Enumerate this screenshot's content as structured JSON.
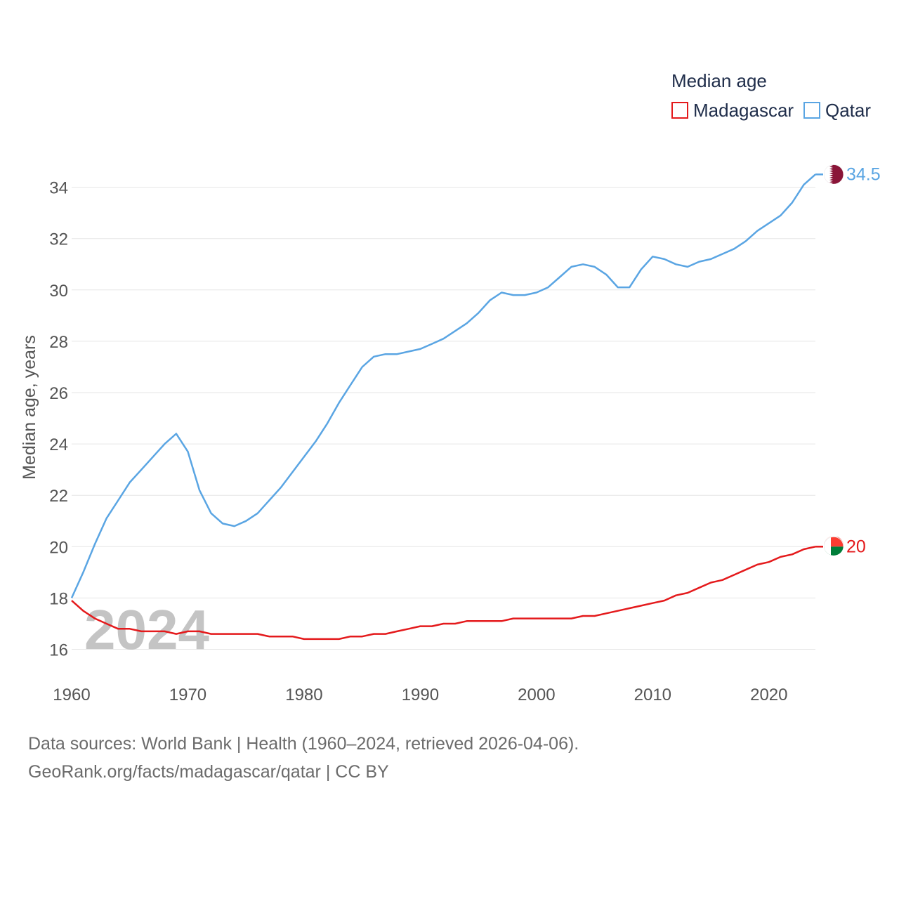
{
  "chart_data": {
    "type": "line",
    "title": "Median age",
    "ylabel": "Median age, years",
    "xlabel": "",
    "xlim": [
      1960,
      2024
    ],
    "ylim": [
      15,
      35.5
    ],
    "yticks": [
      16,
      18,
      20,
      22,
      24,
      26,
      28,
      30,
      32,
      34
    ],
    "xticks": [
      1960,
      1970,
      1980,
      1990,
      2000,
      2010,
      2020
    ],
    "watermark_year": "2024",
    "legend_position": "top-right",
    "x": [
      1960,
      1961,
      1962,
      1963,
      1964,
      1965,
      1966,
      1967,
      1968,
      1969,
      1970,
      1971,
      1972,
      1973,
      1974,
      1975,
      1976,
      1977,
      1978,
      1979,
      1980,
      1981,
      1982,
      1983,
      1984,
      1985,
      1986,
      1987,
      1988,
      1989,
      1990,
      1991,
      1992,
      1993,
      1994,
      1995,
      1996,
      1997,
      1998,
      1999,
      2000,
      2001,
      2002,
      2003,
      2004,
      2005,
      2006,
      2007,
      2008,
      2009,
      2010,
      2011,
      2012,
      2013,
      2014,
      2015,
      2016,
      2017,
      2018,
      2019,
      2020,
      2021,
      2022,
      2023,
      2024
    ],
    "series": [
      {
        "name": "Madagascar",
        "color": "#e41a1c",
        "end_label": "20",
        "flag": "madagascar-flag",
        "values": [
          17.9,
          17.5,
          17.2,
          17.0,
          16.8,
          16.8,
          16.7,
          16.7,
          16.7,
          16.6,
          16.7,
          16.7,
          16.6,
          16.6,
          16.6,
          16.6,
          16.6,
          16.5,
          16.5,
          16.5,
          16.4,
          16.4,
          16.4,
          16.4,
          16.5,
          16.5,
          16.6,
          16.6,
          16.7,
          16.8,
          16.9,
          16.9,
          17.0,
          17.0,
          17.1,
          17.1,
          17.1,
          17.1,
          17.2,
          17.2,
          17.2,
          17.2,
          17.2,
          17.2,
          17.3,
          17.3,
          17.4,
          17.5,
          17.6,
          17.7,
          17.8,
          17.9,
          18.1,
          18.2,
          18.4,
          18.6,
          18.7,
          18.9,
          19.1,
          19.3,
          19.4,
          19.6,
          19.7,
          19.9,
          20.0
        ]
      },
      {
        "name": "Qatar",
        "color": "#5aa5e3",
        "end_label": "34.5",
        "flag": "qatar-flag",
        "values": [
          18.0,
          19.0,
          20.1,
          21.1,
          21.8,
          22.5,
          23.0,
          23.5,
          24.0,
          24.4,
          23.7,
          22.2,
          21.3,
          20.9,
          20.8,
          21.0,
          21.3,
          21.8,
          22.3,
          22.9,
          23.5,
          24.1,
          24.8,
          25.6,
          26.3,
          27.0,
          27.4,
          27.5,
          27.5,
          27.6,
          27.7,
          27.9,
          28.1,
          28.4,
          28.7,
          29.1,
          29.6,
          29.9,
          29.8,
          29.8,
          29.9,
          30.1,
          30.5,
          30.9,
          31.0,
          30.9,
          30.6,
          30.1,
          30.1,
          30.8,
          31.3,
          31.2,
          31.0,
          30.9,
          31.1,
          31.2,
          31.4,
          31.6,
          31.9,
          32.3,
          32.6,
          32.9,
          33.4,
          34.1,
          34.5
        ]
      }
    ]
  },
  "footer": {
    "line1": "Data sources: World Bank | Health (1960–2024, retrieved 2026-04-06).",
    "line2": "GeoRank.org/facts/madagascar/qatar | CC BY"
  }
}
